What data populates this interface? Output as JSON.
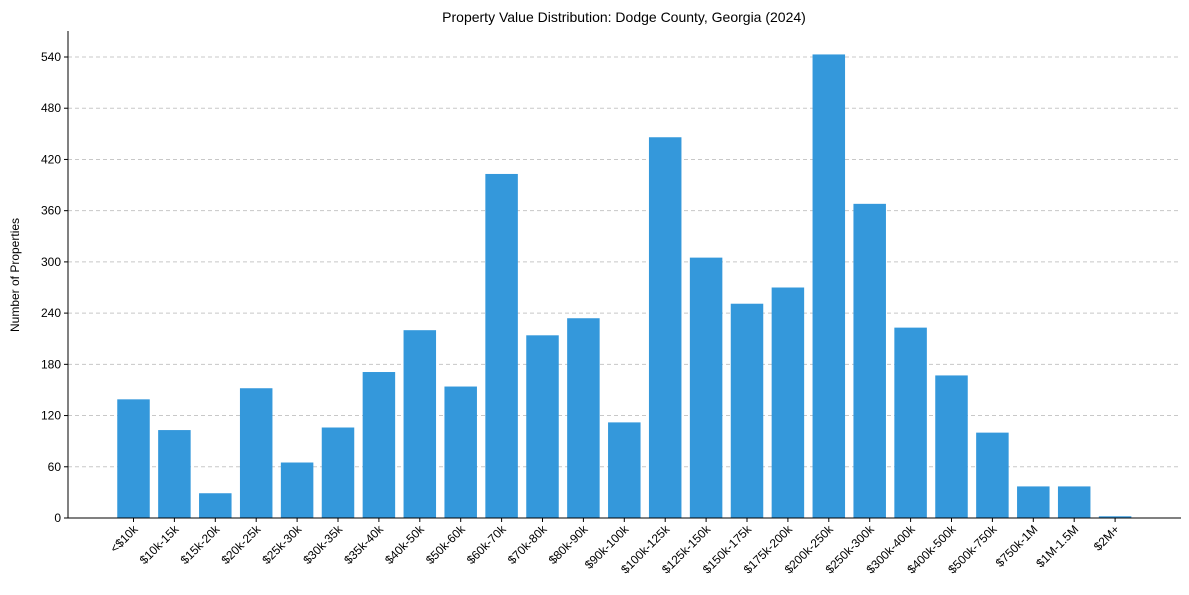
{
  "chart_data": {
    "type": "bar",
    "title": "Property Value Distribution: Dodge County, Georgia (2024)",
    "xlabel": "",
    "ylabel": "Number of Properties",
    "ylim": [
      0,
      570
    ],
    "yticks": [
      0,
      60,
      120,
      180,
      240,
      300,
      360,
      420,
      480,
      540
    ],
    "grid": "y-dashed",
    "bar_color": "#3498db",
    "categories": [
      "<$10k",
      "$10k-15k",
      "$15k-20k",
      "$20k-25k",
      "$25k-30k",
      "$30k-35k",
      "$35k-40k",
      "$40k-50k",
      "$50k-60k",
      "$60k-70k",
      "$70k-80k",
      "$80k-90k",
      "$90k-100k",
      "$100k-125k",
      "$125k-150k",
      "$150k-175k",
      "$175k-200k",
      "$200k-250k",
      "$250k-300k",
      "$300k-400k",
      "$400k-500k",
      "$500k-750k",
      "$750k-1M",
      "$1M-1.5M",
      "$2M+"
    ],
    "values": [
      139,
      103,
      29,
      152,
      65,
      106,
      171,
      220,
      154,
      403,
      214,
      234,
      112,
      446,
      305,
      251,
      270,
      543,
      368,
      223,
      167,
      100,
      37,
      37,
      2
    ]
  }
}
